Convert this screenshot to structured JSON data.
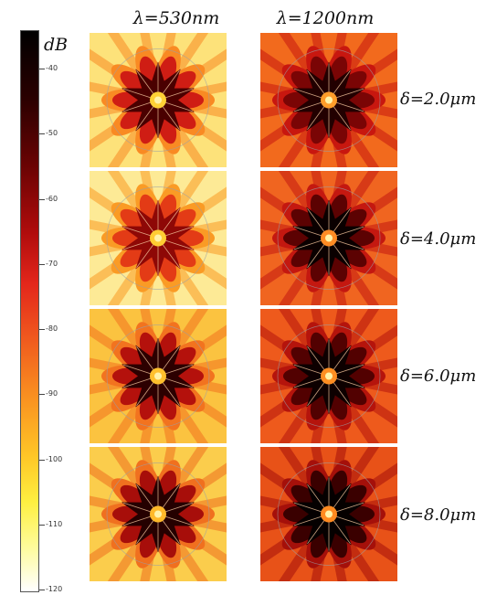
{
  "colorbar": {
    "unit": "dB",
    "ticks": [
      "-40",
      "-50",
      "-60",
      "-70",
      "-80",
      "-90",
      "-100",
      "-110",
      "-120"
    ],
    "tick_values": [
      -40,
      -50,
      -60,
      -70,
      -80,
      -90,
      -100,
      -110,
      -120
    ]
  },
  "columns": [
    {
      "label": "λ=530nm"
    },
    {
      "label": "λ=1200nm"
    }
  ],
  "rows": [
    {
      "label": "δ=2.0μm"
    },
    {
      "label": "δ=4.0μm"
    },
    {
      "label": "δ=6.0μm"
    },
    {
      "label": "δ=8.0μm"
    }
  ],
  "panels": [
    {
      "bg": "#fde27a",
      "c1": "#f98a23",
      "c2": "#cf1d14",
      "c3": "#4a0000",
      "center": "#ffd135"
    },
    {
      "bg": "#f26a1d",
      "c1": "#c8170f",
      "c2": "#7a0505",
      "c3": "#220000",
      "center": "#ff9d2a"
    },
    {
      "bg": "#fdea96",
      "c1": "#fa9b25",
      "c2": "#e33b16",
      "c3": "#8e0806",
      "center": "#ffcc33"
    },
    {
      "bg": "#f06520",
      "c1": "#c41810",
      "c2": "#5c0202",
      "c3": "#0a0000",
      "center": "#ff8c24"
    },
    {
      "bg": "#fbc340",
      "c1": "#f2731f",
      "c2": "#b4110c",
      "c3": "#2c0000",
      "center": "#ffc02d"
    },
    {
      "bg": "#ee5a1c",
      "c1": "#b5140c",
      "c2": "#520101",
      "c3": "#0d0000",
      "center": "#ff8e22"
    },
    {
      "bg": "#fbcd4c",
      "c1": "#f0701f",
      "c2": "#a70e0a",
      "c3": "#250000",
      "center": "#ffb92a"
    },
    {
      "bg": "#e85218",
      "c1": "#a5100a",
      "c2": "#3a0000",
      "c3": "#050000",
      "center": "#ff8a20"
    }
  ]
}
